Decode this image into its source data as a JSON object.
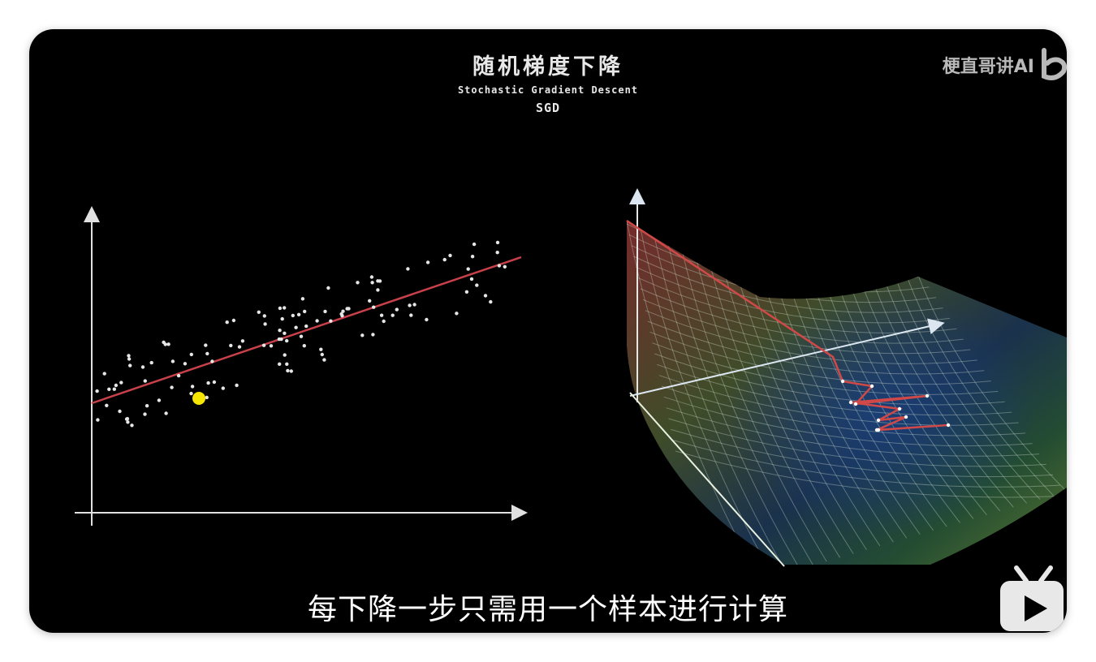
{
  "video": {
    "title": "随机梯度下降",
    "subtitle_en": "Stochastic Gradient Descent",
    "abbreviation": "SGD",
    "watermark": "梗直哥讲AI",
    "caption": "每下降一步只需用一个样本进行计算"
  },
  "colors": {
    "background": "#000000",
    "fit_line": "#c8404a",
    "highlight_point": "#f4e600",
    "points": "#e6e6e6",
    "axes": "#e0e0e0"
  },
  "icons": {
    "watermark_logo": "bilibili-b-icon",
    "tv": "bilibili-tv-icon",
    "play": "play-icon"
  }
}
